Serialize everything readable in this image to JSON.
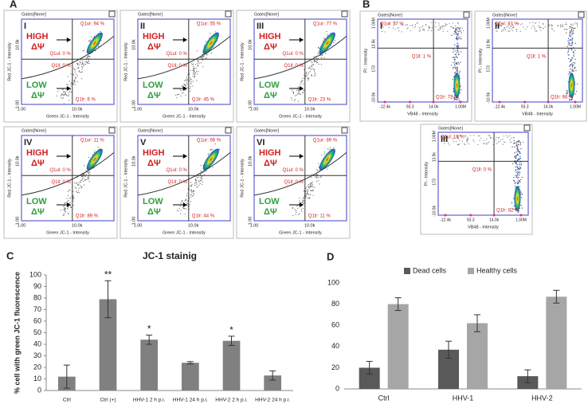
{
  "panels": {
    "A": {
      "label": "A",
      "gate": "Gates[None]",
      "high": "HIGH",
      "low": "LOW",
      "psi": "ΔΨ",
      "x_label": "Green JC-1 - Intensity",
      "y_label": "Red JC-1 - Intensity",
      "xticks": [
        "1.00",
        "10.0k"
      ],
      "yticks": [
        "10.0k",
        "1.00"
      ],
      "plots": [
        {
          "roman": "I",
          "q1ul": "Q1ul: 0 %",
          "q1ur": "Q1ur: 94 %",
          "q1ll": "Q1ll: 0 %",
          "q1lr": "Q1lr: 6 %"
        },
        {
          "roman": "II",
          "q1ul": "Q1ul: 0 %",
          "q1ur": "Q1ur: 55 %",
          "q1ll": "Q1ll: 0 %",
          "q1lr": "Q1lr: 45 %"
        },
        {
          "roman": "III",
          "q1ul": "Q1ul: 0 %",
          "q1ur": "Q1ur: 77 %",
          "q1ll": "Q1ll: 0 %",
          "q1lr": "Q1lr: 23 %"
        },
        {
          "roman": "IV",
          "q1ul": "Q1ul: 0 %",
          "q1ur": "Q1ur: 11 %",
          "q1ll": "Q1ll: 0 %",
          "q1lr": "Q1lr: 89 %"
        },
        {
          "roman": "V",
          "q1ul": "Q1ul: 0 %",
          "q1ur": "Q1ur: 56 %",
          "q1ll": "Q1ll: 0 %",
          "q1lr": "Q1lr: 44 %"
        },
        {
          "roman": "VI",
          "q1ul": "Q1ul: 0 %",
          "q1ur": "Q1ur: 89 %",
          "q1ll": "Q1ll: 0 %",
          "q1lr": "Q1lr: 11 %"
        }
      ]
    },
    "B": {
      "label": "B",
      "gate": "Gates[None]",
      "x_label": "VB48 - Intensity",
      "y_label": "PI - Intensity",
      "xticks": [
        "-12.4k",
        "93.3",
        "14.0k",
        "1.00M"
      ],
      "yticks": [
        "1.00M",
        "13.9k",
        "173",
        "-10.9k"
      ],
      "plots": [
        {
          "roman": "I",
          "q1ul": "Q1ul: 27 %",
          "q1ll": "Q1ll: 1 %",
          "q1lr": "Q1lr: 72 %"
        },
        {
          "roman": "II",
          "q1ul": "Q1ul: 33 %",
          "q1ll": "Q1ll: 1 %",
          "q1lr": "Q1lr: 66 %"
        },
        {
          "roman": "III",
          "q1ul": "Q1ul: 18 %",
          "q1ll": "Q1ll: 0 %",
          "q1lr": "Q1lr: 82 %"
        }
      ]
    }
  },
  "chart_data": [
    {
      "type": "bar",
      "panel": "C",
      "title": "JC-1 stainig",
      "y_label": "% cell with green JC-1 fluorescence",
      "categories": [
        "Ctrl",
        "Ctrl (+)",
        "HHV-1  2 h p.i.",
        "HHV-1  24 h p.i.",
        "HHV-2  2 h p.i.",
        "HHV-2  24 h p.i."
      ],
      "values": [
        12,
        79,
        44,
        24,
        43,
        13
      ],
      "errors": [
        10,
        16,
        4,
        1,
        4,
        4
      ],
      "significance": [
        null,
        "**",
        "*",
        null,
        "*",
        null
      ],
      "color": "#808080",
      "ylim": [
        0,
        100
      ],
      "yticks": [
        0,
        10,
        20,
        30,
        40,
        50,
        60,
        70,
        80,
        90,
        100
      ]
    },
    {
      "type": "bar",
      "panel": "D",
      "categories": [
        "Ctrl",
        "HHV-1",
        "HHV-2"
      ],
      "series": [
        {
          "name": "Dead cells",
          "color": "#595959",
          "values": [
            20,
            37,
            12
          ],
          "errors": [
            6,
            8,
            6
          ]
        },
        {
          "name": "Healthy cells",
          "color": "#a6a6a6",
          "values": [
            80,
            62,
            87
          ],
          "errors": [
            6,
            8,
            6
          ]
        }
      ],
      "legend": "top",
      "ylim": [
        0,
        100
      ],
      "yticks": [
        0,
        20,
        40,
        60,
        80,
        100
      ]
    }
  ]
}
